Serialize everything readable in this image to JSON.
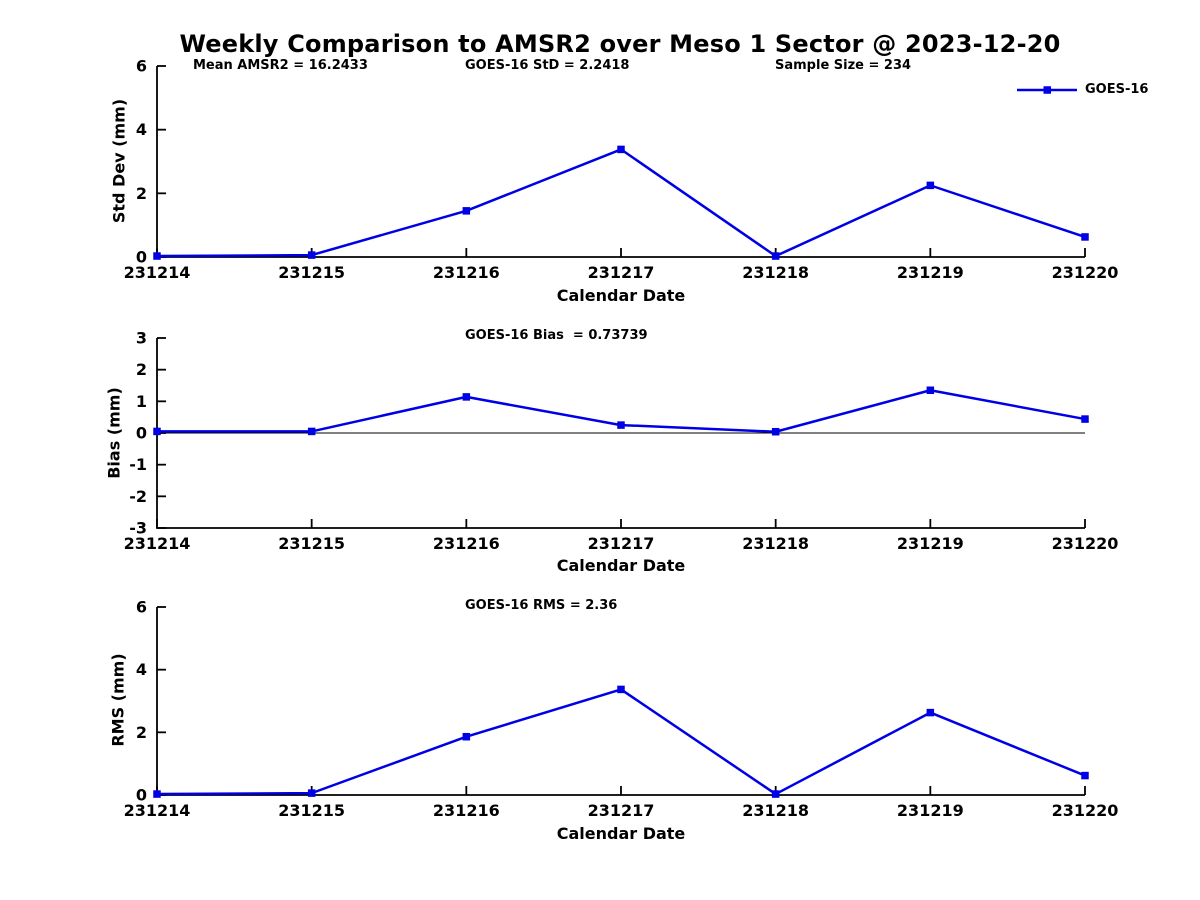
{
  "title": "Weekly Comparison to AMSR2 over Meso 1 Sector @ 2023-12-20",
  "legend": {
    "label": "GOES-16"
  },
  "colors": {
    "series": "#0000E6",
    "axis": "#000000",
    "text": "#000000"
  },
  "chart_data": [
    {
      "type": "line",
      "name": "std-dev-vs-date",
      "ylabel": "Std Dev (mm)",
      "xlabel": "Calendar Date",
      "categories": [
        "231214",
        "231215",
        "231216",
        "231217",
        "231218",
        "231219",
        "231220"
      ],
      "ylim": [
        0,
        6
      ],
      "yticks": [
        0,
        2,
        4,
        6
      ],
      "grid": false,
      "zero_line": false,
      "legend_position": "top-right-outside",
      "series": [
        {
          "name": "GOES-16",
          "values": [
            0.03,
            0.06,
            1.45,
            3.38,
            0.03,
            2.25,
            0.63
          ]
        }
      ],
      "annotations": [
        "Mean AMSR2 = 16.2433",
        "GOES-16 StD = 2.2418",
        "Sample Size = 234"
      ]
    },
    {
      "type": "line",
      "name": "bias-vs-date",
      "ylabel": "Bias (mm)",
      "xlabel": "Calendar Date",
      "categories": [
        "231214",
        "231215",
        "231216",
        "231217",
        "231218",
        "231219",
        "231220"
      ],
      "ylim": [
        -3,
        3
      ],
      "yticks": [
        -3,
        -2,
        -1,
        0,
        1,
        2,
        3
      ],
      "grid": false,
      "zero_line": true,
      "series": [
        {
          "name": "GOES-16",
          "values": [
            0.05,
            0.05,
            1.14,
            0.25,
            0.04,
            1.35,
            0.44
          ]
        }
      ],
      "annotations": [
        "GOES-16 Bias  = 0.73739"
      ]
    },
    {
      "type": "line",
      "name": "rms-vs-date",
      "ylabel": "RMS (mm)",
      "xlabel": "Calendar Date",
      "categories": [
        "231214",
        "231215",
        "231216",
        "231217",
        "231218",
        "231219",
        "231220"
      ],
      "ylim": [
        0,
        6
      ],
      "yticks": [
        0,
        2,
        4,
        6
      ],
      "grid": false,
      "zero_line": false,
      "series": [
        {
          "name": "GOES-16",
          "values": [
            0.03,
            0.06,
            1.86,
            3.37,
            0.03,
            2.63,
            0.62
          ]
        }
      ],
      "annotations": [
        "GOES-16 RMS = 2.36"
      ]
    }
  ]
}
